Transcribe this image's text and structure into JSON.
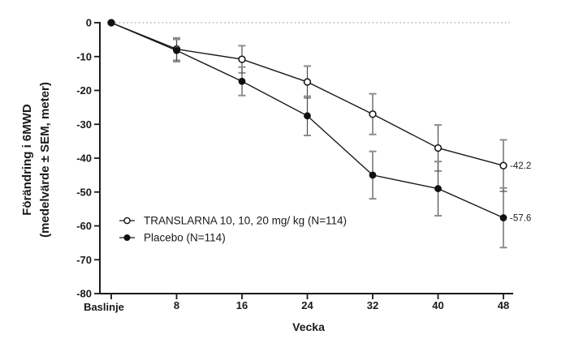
{
  "chart_data": {
    "type": "line",
    "xlabel": "Vecka",
    "ylabel_line1": "Förändring i 6MWD",
    "ylabel_line2": "(medelvärde ± SEM, meter)",
    "x_weeks": [
      0,
      8,
      16,
      24,
      32,
      40,
      48
    ],
    "x_tick_labels": [
      "Baslinje",
      "8",
      "16",
      "24",
      "32",
      "40",
      "48"
    ],
    "y_ticks": [
      0,
      -10,
      -20,
      -30,
      -40,
      -50,
      -60,
      -70,
      -80
    ],
    "y_tick_labels": [
      "0",
      "-10",
      "-20",
      "-30",
      "-40",
      "-50",
      "-60",
      "-70",
      "-80"
    ],
    "ylim": [
      -80,
      0
    ],
    "zero_reference_line": "dotted",
    "legend_position": "inside-lower-left",
    "series": [
      {
        "name": "TRANSLARNA 10, 10, 20 mg/ kg (N=114)",
        "marker": "open-circle",
        "values": [
          0,
          -7.8,
          -10.8,
          -17.5,
          -27,
          -37,
          -42.2
        ],
        "sem": [
          0,
          3.3,
          4,
          4.7,
          6,
          6.8,
          7.6
        ],
        "end_label": "-42.2"
      },
      {
        "name": "Placebo (N=114)",
        "marker": "filled-circle",
        "values": [
          0,
          -8.2,
          -17.3,
          -27.5,
          -45,
          -49,
          -57.6
        ],
        "sem": [
          0,
          3.3,
          4.2,
          5.8,
          7,
          8,
          8.8
        ],
        "end_label": "-57.6"
      }
    ],
    "colors": {
      "line": "#1a1a1a",
      "marker_fill": "#111111",
      "error_bar": "#4d4d4d",
      "error_cap": "#8c8c8c",
      "zero_line": "#9a9a9a",
      "text": "#1a1a1a",
      "background": "#ffffff"
    }
  }
}
